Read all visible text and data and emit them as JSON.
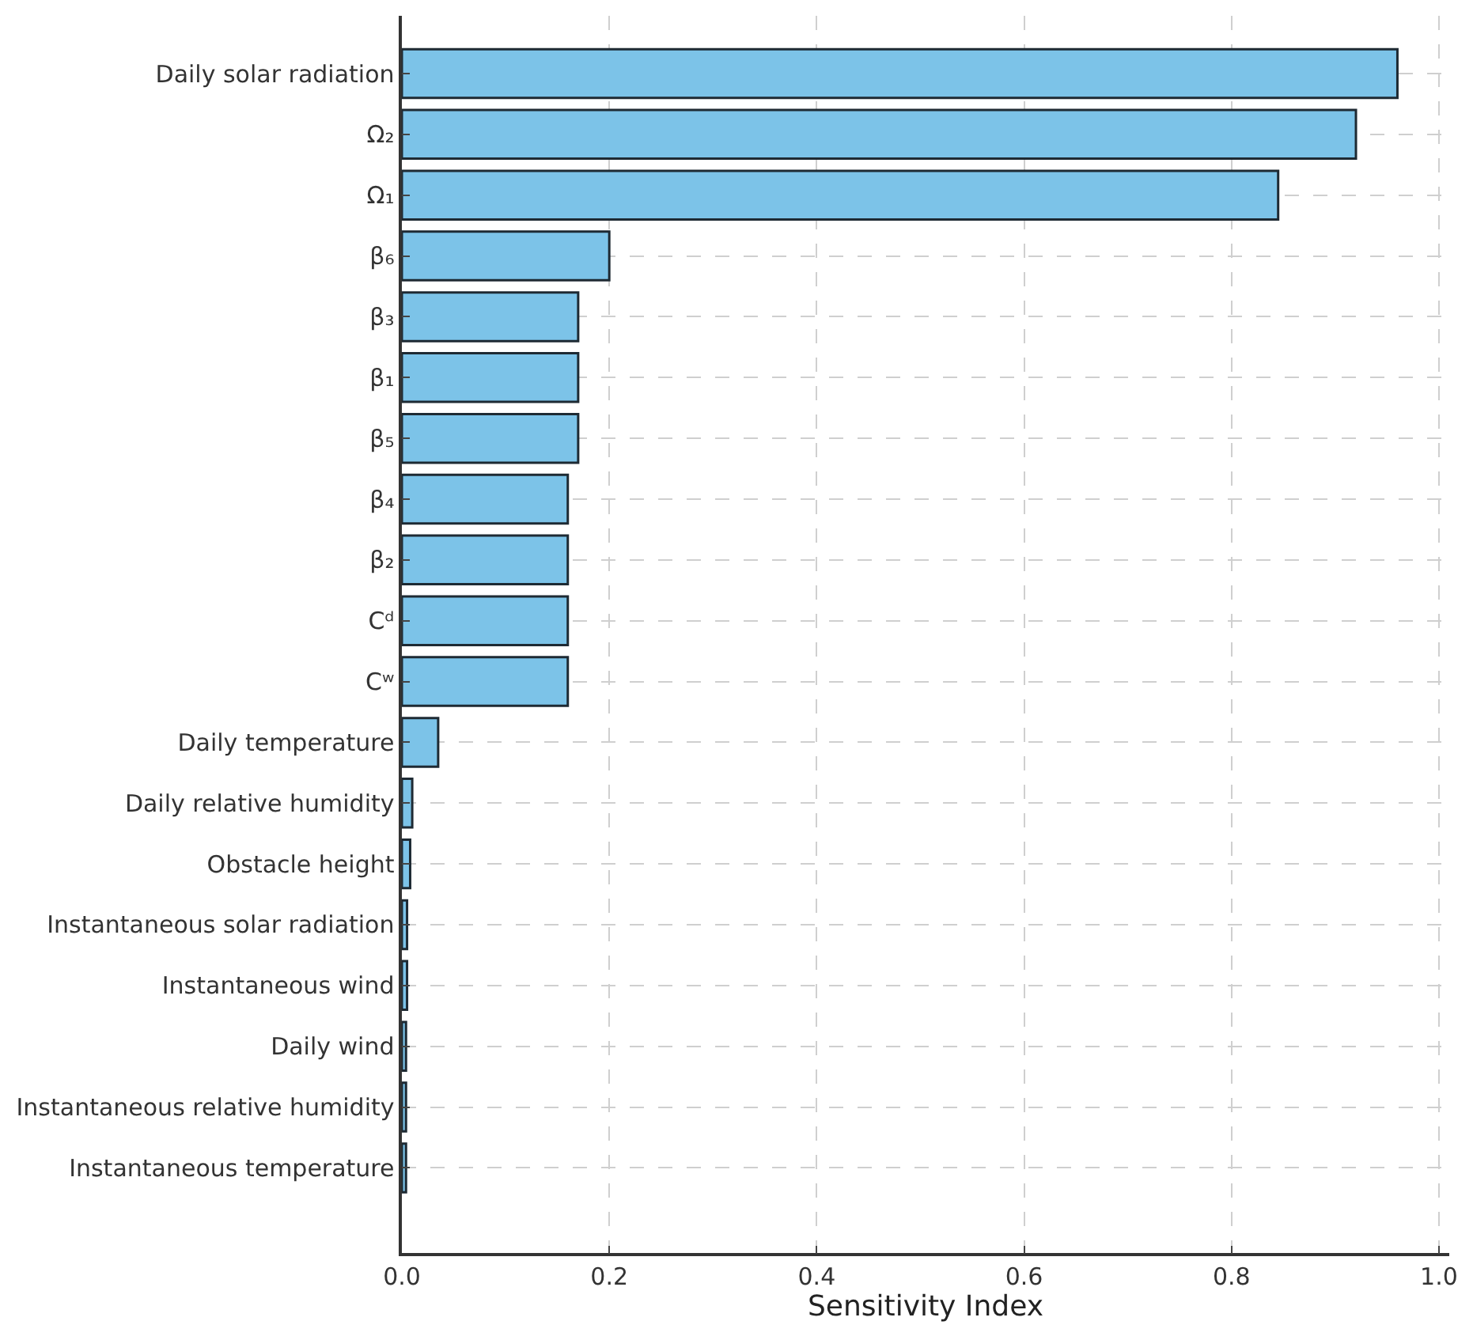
{
  "chart_data": {
    "type": "bar",
    "orientation": "horizontal",
    "xlabel": "Sensitivity Index",
    "categories": [
      "Daily solar radiation",
      "Ω₂",
      "Ω₁",
      "β₆",
      "β₃",
      "β₁",
      "β₅",
      "β₄",
      "β₂",
      "Cᵈ",
      "Cʷ",
      "Daily temperature",
      "Daily relative humidity",
      "Obstacle height",
      "Instantaneous solar radiation",
      "Instantaneous wind",
      "Daily wind",
      "Instantaneous relative humidity",
      "Instantaneous temperature"
    ],
    "values": [
      0.96,
      0.92,
      0.845,
      0.2,
      0.17,
      0.17,
      0.17,
      0.16,
      0.16,
      0.16,
      0.16,
      0.035,
      0.01,
      0.008,
      0.005,
      0.005,
      0.004,
      0.004,
      0.004
    ],
    "color": "#7cc3e8",
    "xlim": [
      0,
      1.01
    ],
    "xticks": [
      {
        "value": 0,
        "label": "0.0"
      },
      {
        "value": 0.2,
        "label": "0.2"
      },
      {
        "value": 0.4,
        "label": "0.4"
      },
      {
        "value": 0.6,
        "label": "0.6"
      },
      {
        "value": 0.8,
        "label": "0.8"
      },
      {
        "value": 1.0,
        "label": "1.0"
      }
    ],
    "grid": true
  }
}
